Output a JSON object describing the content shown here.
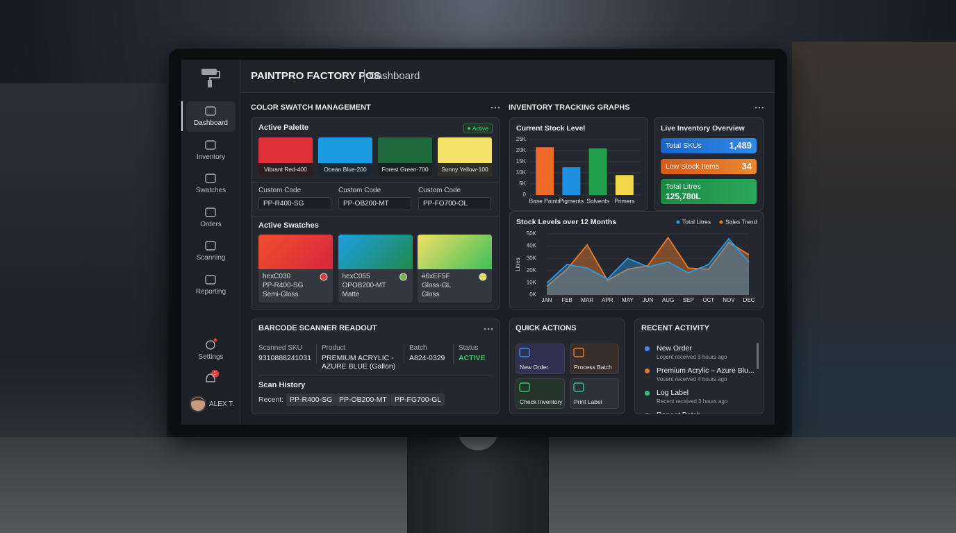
{
  "header": {
    "brand": "PAINTPRO FACTORY POS",
    "page": "Dashboard"
  },
  "sidebar": {
    "nav": [
      "Dashboard",
      "Inventory",
      "Swatches",
      "Orders",
      "Scanning",
      "Reporting"
    ],
    "settings": "Settings",
    "notifications": "1",
    "user": "ALEX T."
  },
  "swatch_panel": {
    "title": "COLOR SWATCH MANAGEMENT",
    "palette_title": "Active Palette",
    "status": "Active",
    "palette": [
      {
        "name": "Vibrant Red-400",
        "color": "#e03236"
      },
      {
        "name": "Ocean Blue-200",
        "color": "#1a9be0"
      },
      {
        "name": "Forest Green-700",
        "color": "#1f6a3c"
      },
      {
        "name": "Sunny Yellow-100",
        "color": "#f4e26a"
      }
    ],
    "codes": [
      {
        "label": "Custom Code",
        "value": "PP-R400-SG"
      },
      {
        "label": "Custom Code",
        "value": "PP-OB200-MT"
      },
      {
        "label": "Custom Code",
        "value": "PP-FO700-OL"
      }
    ],
    "swatches_title": "Active Swatches",
    "swatches": [
      {
        "lines": [
          "hexC030",
          "PP-R400-SG",
          "Semi-Gloss"
        ],
        "gradient": [
          "#f0502c",
          "#d8263e"
        ],
        "dot": "#e0383c"
      },
      {
        "lines": [
          "hexC055",
          "OPOB200-MT",
          "Matte"
        ],
        "gradient": [
          "#1e9ee6",
          "#1f8a4c"
        ],
        "dot": "#7ab04a"
      },
      {
        "lines": [
          "#6xEF5F",
          "Gloss-GL",
          "Gloss"
        ],
        "gradient": [
          "#f2e066",
          "#3fbf5a"
        ],
        "dot": "#e8e35a"
      }
    ]
  },
  "inventory_panel": {
    "title": "INVENTORY TRACKING GRAPHS",
    "overview_title": "Live Inventory Overview",
    "overview": [
      {
        "label": "Total SKUs",
        "value": "1,489",
        "colors": [
          "#1e63c8",
          "#2f8ae6"
        ]
      },
      {
        "label": "Low Stock Items",
        "value": "34",
        "colors": [
          "#d6581a",
          "#ea8a30"
        ]
      },
      {
        "label": "Total Litres",
        "value": "125,780L",
        "colors": [
          "#1a8a42",
          "#2ba85b"
        ]
      }
    ]
  },
  "chart_data": [
    {
      "type": "bar",
      "title": "Current Stock Level",
      "categories": [
        "Base Paints",
        "Pigments",
        "Solvents",
        "Primers"
      ],
      "values": [
        21500,
        12500,
        21000,
        9000
      ],
      "colors": [
        "#ee6a2a",
        "#1f8fe0",
        "#23a04c",
        "#f2d84a"
      ],
      "ylim": [
        0,
        25000
      ],
      "yticks": [
        0,
        {
          "value": 5000,
          "label": "5K"
        },
        {
          "value": 10000,
          "label": "10K"
        },
        {
          "value": 15000,
          "label": "15K"
        },
        {
          "value": 20000,
          "label": "20K"
        },
        {
          "value": 25000,
          "label": "25K"
        }
      ],
      "grid": true
    },
    {
      "type": "line",
      "title": "Stock Levels over 12 Months",
      "y_label": "Litres",
      "categories": [
        "JAN",
        "FEB",
        "MAR",
        "APR",
        "MAY",
        "JUN",
        "AUG",
        "SEP",
        "OCT",
        "NOV",
        "DEC"
      ],
      "series": [
        {
          "name": "Total Litres",
          "color": "#2e9ae0",
          "values": [
            9700,
            25000,
            22000,
            13000,
            30000,
            23000,
            27000,
            18000,
            25000,
            46000,
            27000
          ]
        },
        {
          "name": "Sales Trend",
          "color": "#ec7a2c",
          "values": [
            7000,
            21000,
            41000,
            12000,
            21000,
            24000,
            47000,
            22000,
            21000,
            43000,
            33000
          ]
        }
      ],
      "ylim": [
        0,
        50000
      ],
      "yticks": [
        {
          "value": 0,
          "label": "0K"
        },
        {
          "value": 10000,
          "label": "10K"
        },
        {
          "value": 20000,
          "label": "20K"
        },
        {
          "value": 30000,
          "label": "30K"
        },
        {
          "value": 40000,
          "label": "40K"
        },
        {
          "value": 50000,
          "label": "50K"
        }
      ],
      "grid": true
    }
  ],
  "scanner": {
    "title": "BARCODE SCANNER READOUT",
    "fields": [
      {
        "label": "Scanned SKU",
        "value": "9310888241031"
      },
      {
        "label": "Product",
        "value": "PREMIUM ACRYLIC - AZURE BLUE (Gallon)"
      },
      {
        "label": "Batch",
        "value": "A824-0329"
      },
      {
        "label": "Status",
        "value": "ACTIVE"
      }
    ],
    "history_title": "Scan History",
    "recent_label": "Recent:",
    "recent": [
      "PP-R400-SG",
      "PP-OB200-MT",
      "PP-FG700-GL"
    ]
  },
  "quick_actions": {
    "title": "QUICK ACTIONS",
    "actions": [
      "New Order",
      "Process Batch",
      "Check Inventory",
      "Print Label"
    ]
  },
  "recent_activity": {
    "title": "RECENT ACTIVITY",
    "items": [
      {
        "title": "New Order",
        "meta": "Logent received 3 hours ago"
      },
      {
        "title": "Premium Acrylic – Azure Blu...",
        "meta": "Vocent received 4 hours ago"
      },
      {
        "title": "Log Label",
        "meta": "Recent received 3 hours ago"
      },
      {
        "title": "Repeat Batch"
      }
    ]
  }
}
